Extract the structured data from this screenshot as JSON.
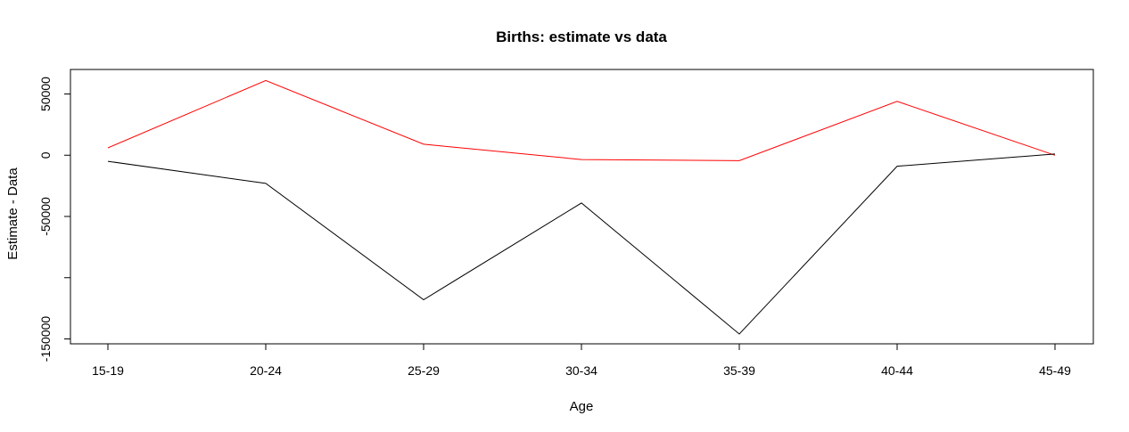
{
  "chart_data": {
    "type": "line",
    "title": "Births: estimate vs data",
    "xlabel": "Age",
    "ylabel": "Estimate - Data",
    "categories": [
      "15-19",
      "20-24",
      "25-29",
      "30-34",
      "35-39",
      "40-44",
      "45-49"
    ],
    "y_ticks": [
      {
        "value": 50000,
        "label": "50000"
      },
      {
        "value": 0,
        "label": "0"
      },
      {
        "value": -50000,
        "label": "-50000"
      },
      {
        "value": -150000,
        "label": "-150000"
      }
    ],
    "y_minor_ticks": [
      -100000
    ],
    "ylim": [
      -154000,
      70000
    ],
    "grid": false,
    "legend": "none",
    "series": [
      {
        "color": "#ff0000",
        "values": [
          6000,
          61000,
          9000,
          -3500,
          -4500,
          44000,
          0
        ]
      },
      {
        "color": "#000000",
        "values": [
          -5000,
          -23000,
          -118000,
          -39000,
          -146000,
          -9000,
          1000
        ]
      }
    ]
  }
}
